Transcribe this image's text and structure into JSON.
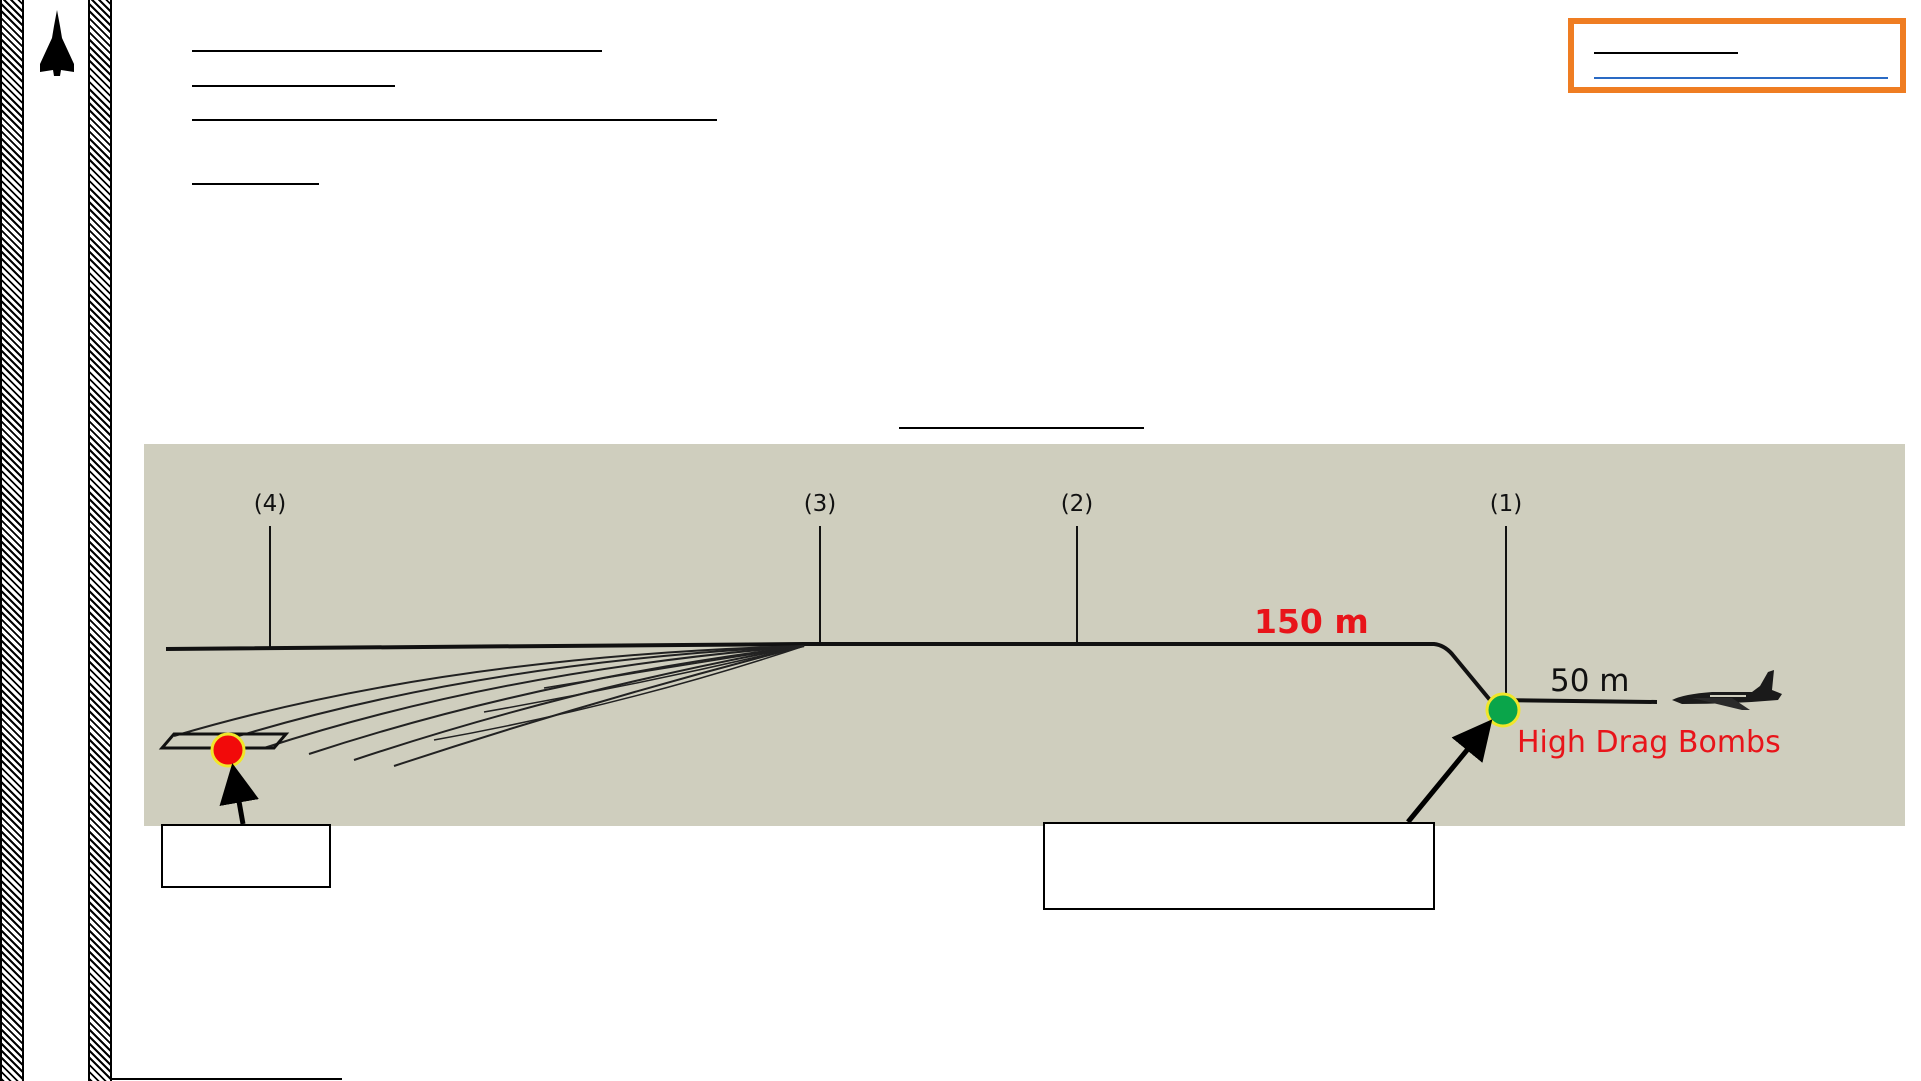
{
  "diagram": {
    "markers": [
      "(4)",
      "(3)",
      "(2)",
      "(1)"
    ],
    "altitude_label": "150 m",
    "release_altitude_label": "50 m",
    "bomb_type_label": "High Drag Bombs"
  },
  "colors": {
    "release_point": "#0aa54a",
    "impact_point": "#f20a0a",
    "label_red": "#e8141a",
    "highlight_box": "#ef7d22",
    "panel_background": "#cfcebe"
  },
  "icons": {
    "logo": "delta-wing-aircraft-icon",
    "aircraft": "jet-aircraft-icon"
  }
}
